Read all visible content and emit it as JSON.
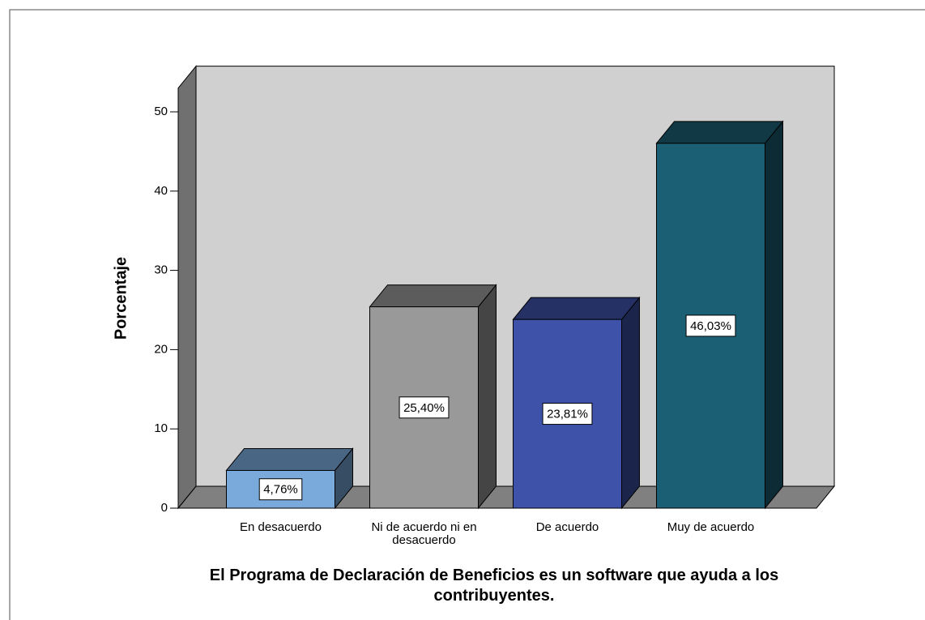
{
  "chart_data": {
    "type": "bar3d",
    "title": "El Programa de Declaración de Beneficios es un software que ayuda a los contribuyentes.",
    "y_label": "Porcentaje",
    "categories": [
      "En desacuerdo",
      "Ni de acuerdo ni en desacuerdo",
      "De acuerdo",
      "Muy de acuerdo"
    ],
    "values": [
      4.76,
      25.4,
      23.81,
      46.03
    ],
    "value_labels": [
      "4,76%",
      "25,40%",
      "23,81%",
      "46,03%"
    ],
    "colors": [
      "#7aaadc",
      "#999999",
      "#3d52a8",
      "#1a5f73"
    ],
    "ylim": [
      0,
      53
    ],
    "yticks": [
      0,
      10,
      20,
      30,
      40,
      50
    ]
  }
}
